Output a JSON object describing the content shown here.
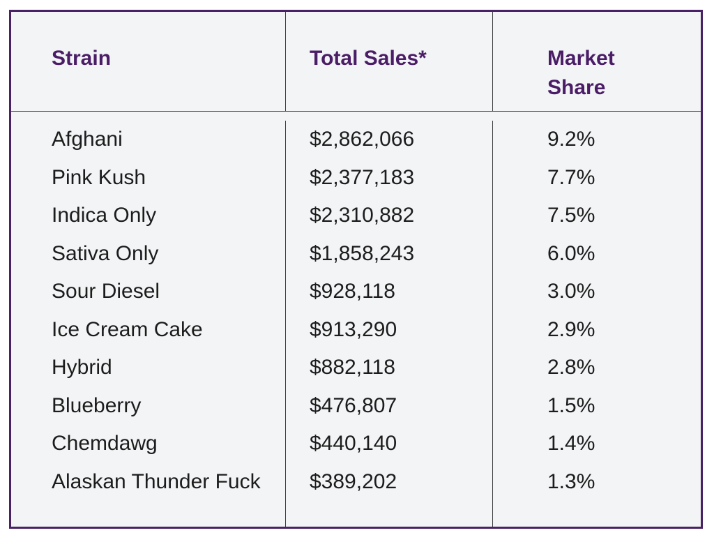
{
  "colors": {
    "header_text": "#4b1d67",
    "outer_border": "#4a2166",
    "grid_line": "#3f3f3f",
    "cell_background": "#f2f4f5",
    "body_text": "#1c1c1c",
    "page_background": "#ffffff"
  },
  "chart_data": {
    "type": "table",
    "columns": [
      "Strain",
      "Total Sales*",
      "Market Share"
    ],
    "rows": [
      {
        "strain": "Afghani",
        "total_sales_display": "$2,862,066",
        "total_sales_usd": 2862066,
        "market_share_display": "9.2%",
        "market_share_pct": 9.2
      },
      {
        "strain": "Pink Kush",
        "total_sales_display": "$2,377,183",
        "total_sales_usd": 2377183,
        "market_share_display": "7.7%",
        "market_share_pct": 7.7
      },
      {
        "strain": "Indica Only",
        "total_sales_display": "$2,310,882",
        "total_sales_usd": 2310882,
        "market_share_display": "7.5%",
        "market_share_pct": 7.5
      },
      {
        "strain": "Sativa Only",
        "total_sales_display": "$1,858,243",
        "total_sales_usd": 1858243,
        "market_share_display": "6.0%",
        "market_share_pct": 6.0
      },
      {
        "strain": "Sour Diesel",
        "total_sales_display": "$928,118",
        "total_sales_usd": 928118,
        "market_share_display": "3.0%",
        "market_share_pct": 3.0
      },
      {
        "strain": "Ice Cream Cake",
        "total_sales_display": "$913,290",
        "total_sales_usd": 913290,
        "market_share_display": "2.9%",
        "market_share_pct": 2.9
      },
      {
        "strain": "Hybrid",
        "total_sales_display": "$882,118",
        "total_sales_usd": 882118,
        "market_share_display": "2.8%",
        "market_share_pct": 2.8
      },
      {
        "strain": "Blueberry",
        "total_sales_display": "$476,807",
        "total_sales_usd": 476807,
        "market_share_display": "1.5%",
        "market_share_pct": 1.5
      },
      {
        "strain": "Chemdawg",
        "total_sales_display": "$440,140",
        "total_sales_usd": 440140,
        "market_share_display": "1.4%",
        "market_share_pct": 1.4
      },
      {
        "strain": "Alaskan Thunder Fuck",
        "total_sales_display": "$389,202",
        "total_sales_usd": 389202,
        "market_share_display": "1.3%",
        "market_share_pct": 1.3
      }
    ]
  }
}
